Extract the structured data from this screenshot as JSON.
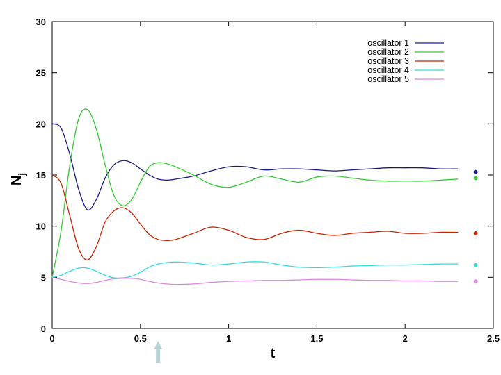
{
  "chart_data": {
    "type": "line",
    "xlabel": "t",
    "ylabel": "N",
    "ylabel_subscript": "j",
    "xlim": [
      0,
      2.5
    ],
    "ylim": [
      0,
      30
    ],
    "xticks": [
      "0",
      "0.5",
      "1",
      "1.5",
      "2",
      "2.5"
    ],
    "yticks": [
      "0",
      "5",
      "10",
      "15",
      "20",
      "25",
      "30"
    ],
    "legend_position": "top-right",
    "grid": false,
    "marker_t": 0.6,
    "series": [
      {
        "name": "oscillator 1",
        "color": "#1a1a8c",
        "x": [
          0,
          0.05,
          0.1,
          0.15,
          0.2,
          0.25,
          0.3,
          0.35,
          0.4,
          0.45,
          0.5,
          0.55,
          0.6,
          0.65,
          0.7,
          0.8,
          0.9,
          1.0,
          1.1,
          1.2,
          1.3,
          1.4,
          1.5,
          1.6,
          1.7,
          1.8,
          1.9,
          2.0,
          2.1,
          2.2,
          2.3
        ],
        "y": [
          20,
          19.6,
          17,
          13.6,
          11.6,
          12.6,
          14.7,
          16.0,
          16.4,
          16.2,
          15.6,
          15.0,
          14.6,
          14.5,
          14.6,
          14.9,
          15.4,
          15.8,
          15.8,
          15.5,
          15.6,
          15.6,
          15.5,
          15.4,
          15.5,
          15.6,
          15.7,
          15.7,
          15.7,
          15.6,
          15.6
        ],
        "end_marker": 15.3
      },
      {
        "name": "oscillator 2",
        "color": "#33cc33",
        "x": [
          0,
          0.05,
          0.1,
          0.15,
          0.2,
          0.25,
          0.3,
          0.35,
          0.4,
          0.45,
          0.5,
          0.55,
          0.6,
          0.65,
          0.7,
          0.8,
          0.9,
          1.0,
          1.1,
          1.2,
          1.3,
          1.4,
          1.5,
          1.6,
          1.7,
          1.8,
          1.9,
          2.0,
          2.1,
          2.2,
          2.3
        ],
        "y": [
          5,
          9.5,
          16,
          20.5,
          21.4,
          19.5,
          16.0,
          13.0,
          12.0,
          12.6,
          14.3,
          15.8,
          16.2,
          16.1,
          15.8,
          15.0,
          14.1,
          13.8,
          14.3,
          14.9,
          14.6,
          14.3,
          14.8,
          14.9,
          14.7,
          14.5,
          14.4,
          14.4,
          14.4,
          14.5,
          14.6
        ],
        "end_marker": 14.7
      },
      {
        "name": "oscillator 3",
        "color": "#cc2200",
        "x": [
          0,
          0.05,
          0.1,
          0.15,
          0.2,
          0.25,
          0.3,
          0.35,
          0.4,
          0.45,
          0.5,
          0.55,
          0.6,
          0.65,
          0.7,
          0.8,
          0.9,
          1.0,
          1.1,
          1.2,
          1.3,
          1.4,
          1.5,
          1.6,
          1.7,
          1.8,
          1.9,
          2.0,
          2.1,
          2.2,
          2.3
        ],
        "y": [
          15,
          14.2,
          11.0,
          7.8,
          6.7,
          8.0,
          10.4,
          11.5,
          11.8,
          11.3,
          10.2,
          9.2,
          8.7,
          8.6,
          8.7,
          9.3,
          9.9,
          9.6,
          8.9,
          8.7,
          9.3,
          9.6,
          9.3,
          9.1,
          9.3,
          9.4,
          9.5,
          9.3,
          9.3,
          9.4,
          9.4
        ],
        "end_marker": 9.3
      },
      {
        "name": "oscillator 4",
        "color": "#33dddd",
        "x": [
          0,
          0.05,
          0.1,
          0.15,
          0.2,
          0.25,
          0.3,
          0.35,
          0.4,
          0.45,
          0.5,
          0.55,
          0.6,
          0.65,
          0.7,
          0.8,
          0.9,
          1.0,
          1.1,
          1.2,
          1.3,
          1.4,
          1.5,
          1.6,
          1.7,
          1.8,
          1.9,
          2.0,
          2.1,
          2.2,
          2.3
        ],
        "y": [
          5,
          5.2,
          5.6,
          5.9,
          5.9,
          5.6,
          5.2,
          4.95,
          4.95,
          5.1,
          5.5,
          6.0,
          6.3,
          6.45,
          6.5,
          6.4,
          6.2,
          6.3,
          6.5,
          6.5,
          6.2,
          6.0,
          5.95,
          6.0,
          6.1,
          6.15,
          6.2,
          6.2,
          6.25,
          6.3,
          6.3
        ],
        "end_marker": 6.2
      },
      {
        "name": "oscillator 5",
        "color": "#dd88dd",
        "x": [
          0,
          0.05,
          0.1,
          0.15,
          0.2,
          0.25,
          0.3,
          0.35,
          0.4,
          0.45,
          0.5,
          0.55,
          0.6,
          0.65,
          0.7,
          0.8,
          0.9,
          1.0,
          1.1,
          1.2,
          1.3,
          1.4,
          1.5,
          1.6,
          1.7,
          1.8,
          1.9,
          2.0,
          2.1,
          2.2,
          2.3
        ],
        "y": [
          5,
          4.8,
          4.6,
          4.45,
          4.4,
          4.5,
          4.7,
          4.85,
          4.9,
          4.9,
          4.8,
          4.6,
          4.45,
          4.35,
          4.3,
          4.35,
          4.5,
          4.6,
          4.65,
          4.7,
          4.7,
          4.75,
          4.8,
          4.8,
          4.75,
          4.7,
          4.7,
          4.65,
          4.65,
          4.6,
          4.6
        ],
        "end_marker": 4.6
      }
    ]
  }
}
